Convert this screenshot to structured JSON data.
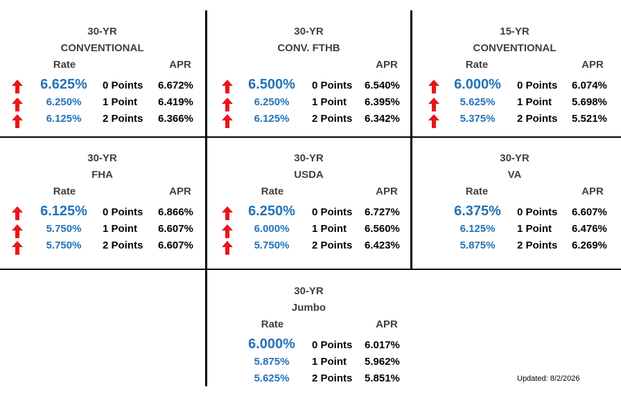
{
  "updated": "Updated: 8/2/2026",
  "cells": [
    {
      "title1": "30-YR",
      "title2": "CONVENTIONAL",
      "rate_header": "Rate",
      "apr_header": "APR",
      "rows": [
        {
          "rate": "6.625%",
          "points": "0 Points",
          "apr": "6.672%",
          "arrow": "up-arrow"
        },
        {
          "rate": "6.250%",
          "points": "1 Point",
          "apr": "6.419%",
          "arrow": "up-arrow"
        },
        {
          "rate": "6.125%",
          "points": "2 Points",
          "apr": "6.366%",
          "arrow": "up-arrow"
        }
      ]
    },
    {
      "title1": "30-YR",
      "title2": "CONV. FTHB",
      "rate_header": "",
      "apr_header": "APR",
      "rows": [
        {
          "rate": "6.500%",
          "points": "0 Points",
          "apr": "6.540%",
          "arrow": "up-arrow"
        },
        {
          "rate": "6.250%",
          "points": "1 Point",
          "apr": "6.395%",
          "arrow": "up-arrow"
        },
        {
          "rate": "6.125%",
          "points": "2 Points",
          "apr": "6.342%",
          "arrow": "up-arrow"
        }
      ]
    },
    {
      "title1": "15-YR",
      "title2": "CONVENTIONAL",
      "rate_header": "Rate",
      "apr_header": "APR",
      "rows": [
        {
          "rate": "6.000%",
          "points": "0 Points",
          "apr": "6.074%",
          "arrow": "up-arrow"
        },
        {
          "rate": "5.625%",
          "points": "1 Point",
          "apr": "5.698%",
          "arrow": "up-arrow"
        },
        {
          "rate": "5.375%",
          "points": "2 Points",
          "apr": "5.521%",
          "arrow": "up-arrow"
        }
      ]
    },
    {
      "title1": "30-YR",
      "title2": "FHA",
      "rate_header": "Rate",
      "apr_header": "APR",
      "rows": [
        {
          "rate": "6.125%",
          "points": "0 Points",
          "apr": "6.866%",
          "arrow": "up-arrow"
        },
        {
          "rate": "5.750%",
          "points": "1 Point",
          "apr": "6.607%",
          "arrow": "up-arrow"
        },
        {
          "rate": "5.750%",
          "points": "2 Points",
          "apr": "6.607%",
          "arrow": "up-arrow"
        }
      ]
    },
    {
      "title1": "30-YR",
      "title2": "USDA",
      "rate_header": "Rate",
      "apr_header": "APR",
      "rows": [
        {
          "rate": "6.250%",
          "points": "0 Points",
          "apr": "6.727%",
          "arrow": "up-arrow"
        },
        {
          "rate": "6.000%",
          "points": "1 Point",
          "apr": "6.560%",
          "arrow": "up-arrow"
        },
        {
          "rate": "5.750%",
          "points": "2 Points",
          "apr": "6.423%",
          "arrow": "up-arrow"
        }
      ]
    },
    {
      "title1": "30-YR",
      "title2": "VA",
      "rate_header": "Rate",
      "apr_header": "APR",
      "rows": [
        {
          "rate": "6.375%",
          "points": "0 Points",
          "apr": "6.607%",
          "arrow": "none"
        },
        {
          "rate": "6.125%",
          "points": "1 Point",
          "apr": "6.476%",
          "arrow": "none"
        },
        {
          "rate": "5.875%",
          "points": "2 Points",
          "apr": "6.269%",
          "arrow": "none"
        }
      ]
    },
    {
      "title1": "30-YR",
      "title2": "Jumbo",
      "rate_header": "Rate",
      "apr_header": "APR",
      "rows": [
        {
          "rate": "6.000%",
          "points": "0 Points",
          "apr": "6.017%",
          "arrow": "none"
        },
        {
          "rate": "5.875%",
          "points": "1 Point",
          "apr": "5.962%",
          "arrow": "none"
        },
        {
          "rate": "5.625%",
          "points": "2 Points",
          "apr": "5.851%",
          "arrow": "none"
        }
      ]
    }
  ],
  "colors": {
    "rate": "#2273b8",
    "arrow": "#e8161c",
    "text": "#000000",
    "header": "#404040"
  }
}
